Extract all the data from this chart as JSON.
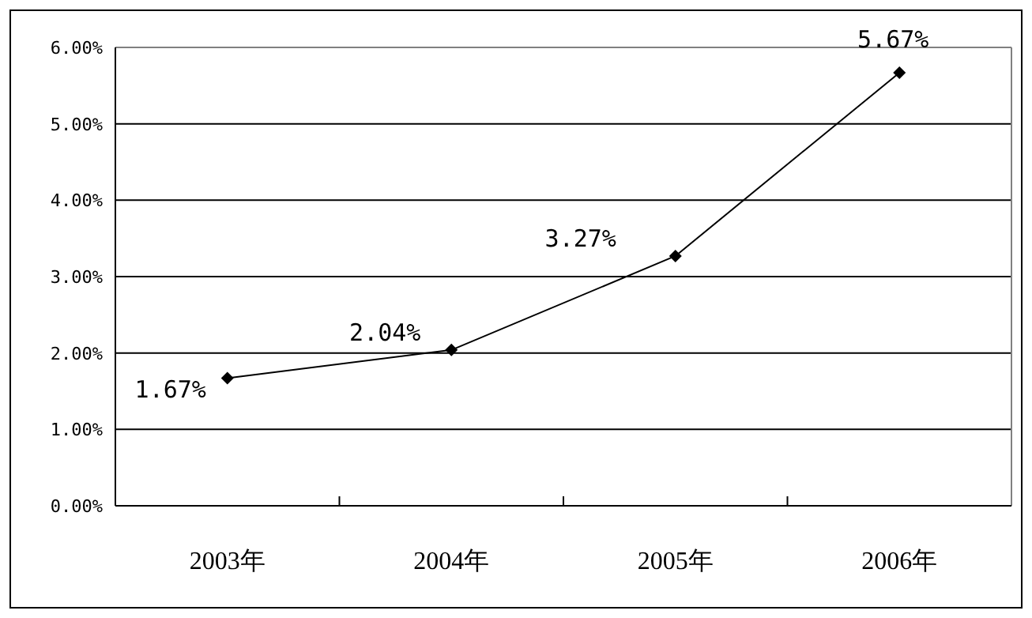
{
  "chart_data": {
    "type": "line",
    "categories": [
      "2003年",
      "2004年",
      "2005年",
      "2006年"
    ],
    "series": [
      {
        "color": "#000000",
        "values": [
          1.67,
          2.04,
          3.27,
          5.67
        ]
      }
    ],
    "value_labels": [
      "1.67%",
      "2.04%",
      "3.27%",
      "5.67%"
    ],
    "ylim": [
      0,
      6
    ],
    "yticks": [
      {
        "value": 0,
        "label": "0.00%"
      },
      {
        "value": 1,
        "label": "1.00%"
      },
      {
        "value": 2,
        "label": "2.00%"
      },
      {
        "value": 3,
        "label": "3.00%"
      },
      {
        "value": 4,
        "label": "4.00%"
      },
      {
        "value": 5,
        "label": "5.00%"
      },
      {
        "value": 6,
        "label": "6.00%"
      }
    ],
    "grid": "y",
    "marker": "diamond",
    "line_style": "solid"
  }
}
